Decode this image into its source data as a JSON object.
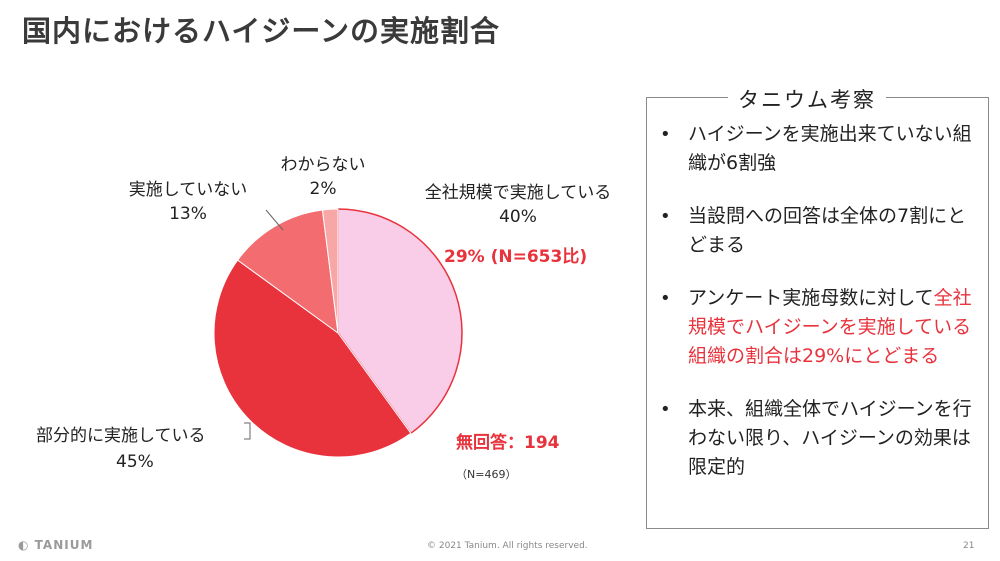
{
  "title": "国内におけるハイジーンの実施割合",
  "chart_data": {
    "type": "pie",
    "categories": [
      "全社規模で実施している",
      "部分的に実施している",
      "実施していない",
      "わからない"
    ],
    "values": [
      40,
      45,
      13,
      2
    ],
    "labels": [
      {
        "name": "全社規模で実施している",
        "pct": "40%"
      },
      {
        "name": "部分的に実施している",
        "pct": "45%"
      },
      {
        "name": "実施していない",
        "pct": "13%"
      },
      {
        "name": "わからない",
        "pct": "2%"
      }
    ],
    "colors": [
      "#f9cde8",
      "#e8323c",
      "#f26c70",
      "#f7a7a5"
    ],
    "annotation_primary": "29% (N=653比)",
    "annotation_no_answer": "無回答：194",
    "sample_size": "（N=469）"
  },
  "insight_box": {
    "title": "タニウム考察",
    "bullet_symbol": "•",
    "bullets": [
      {
        "parts": [
          {
            "text": "ハイジーンを実施出来ていない組織が6割強",
            "highlight": false
          }
        ]
      },
      {
        "parts": [
          {
            "text": "当設問への回答は全体の7割にとどまる",
            "highlight": false
          }
        ]
      },
      {
        "parts": [
          {
            "text": "アンケート実施母数に対して",
            "highlight": false
          },
          {
            "text": "全社規模でハイジーンを実施している組織の割合は29%にとどまる",
            "highlight": true
          }
        ]
      },
      {
        "parts": [
          {
            "text": "本来、組織全体でハイジーンを行わない限り、ハイジーンの効果は限定的",
            "highlight": false
          }
        ]
      }
    ]
  },
  "footer": {
    "logo": "TANIUM",
    "copyright": "© 2021 Tanium. All rights reserved.",
    "page_number": "21"
  }
}
